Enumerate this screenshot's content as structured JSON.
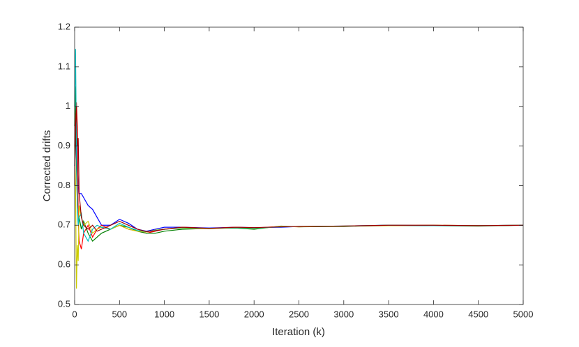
{
  "chart_data": {
    "type": "line",
    "xlabel": "Iteration (k)",
    "ylabel": "Corrected drifts",
    "x": [
      0,
      10,
      20,
      30,
      40,
      50,
      75,
      100,
      150,
      200,
      250,
      300,
      400,
      500,
      600,
      700,
      800,
      900,
      1000,
      1200,
      1500,
      1800,
      2000,
      2300,
      2500,
      3000,
      3500,
      4000,
      4500,
      5000
    ],
    "series": [
      {
        "color": "#0000ff",
        "values": [
          0.85,
          0.9,
          1.0,
          0.85,
          0.8,
          0.78,
          0.78,
          0.77,
          0.75,
          0.74,
          0.72,
          0.7,
          0.7,
          0.715,
          0.705,
          0.69,
          0.685,
          0.69,
          0.695,
          0.695,
          0.693,
          0.695,
          0.694,
          0.695,
          0.697,
          0.698,
          0.7,
          0.699,
          0.699,
          0.7
        ]
      },
      {
        "color": "#ff0000",
        "values": [
          0.9,
          0.97,
          1.01,
          0.95,
          0.72,
          0.66,
          0.64,
          0.68,
          0.7,
          0.67,
          0.69,
          0.7,
          0.69,
          0.7,
          0.69,
          0.685,
          0.68,
          0.685,
          0.69,
          0.695,
          0.692,
          0.695,
          0.693,
          0.697,
          0.696,
          0.698,
          0.699,
          0.7,
          0.699,
          0.7
        ]
      },
      {
        "color": "#008000",
        "values": [
          0.95,
          1.05,
          0.85,
          0.75,
          0.7,
          0.72,
          0.69,
          0.71,
          0.68,
          0.66,
          0.67,
          0.68,
          0.69,
          0.7,
          0.695,
          0.685,
          0.68,
          0.68,
          0.685,
          0.69,
          0.692,
          0.693,
          0.69,
          0.698,
          0.696,
          0.697,
          0.7,
          0.699,
          0.698,
          0.7
        ]
      },
      {
        "color": "#cccc00",
        "values": [
          0.9,
          0.8,
          0.54,
          0.65,
          0.61,
          0.75,
          0.72,
          0.7,
          0.71,
          0.68,
          0.69,
          0.695,
          0.69,
          0.7,
          0.69,
          0.685,
          0.683,
          0.688,
          0.69,
          0.693,
          0.691,
          0.694,
          0.692,
          0.697,
          0.696,
          0.698,
          0.699,
          0.7,
          0.699,
          0.7
        ]
      },
      {
        "color": "#00bfbf",
        "values": [
          1.0,
          1.145,
          0.9,
          0.75,
          0.7,
          0.72,
          0.73,
          0.68,
          0.66,
          0.69,
          0.7,
          0.695,
          0.69,
          0.705,
          0.695,
          0.687,
          0.684,
          0.687,
          0.69,
          0.694,
          0.692,
          0.694,
          0.693,
          0.696,
          0.697,
          0.698,
          0.7,
          0.699,
          0.699,
          0.7
        ]
      },
      {
        "color": "#a00000",
        "values": [
          0.8,
          0.95,
          1.0,
          0.9,
          0.92,
          0.78,
          0.72,
          0.7,
          0.69,
          0.7,
          0.685,
          0.69,
          0.7,
          0.71,
          0.7,
          0.69,
          0.684,
          0.686,
          0.69,
          0.695,
          0.692,
          0.695,
          0.694,
          0.696,
          0.697,
          0.698,
          0.7,
          0.7,
          0.699,
          0.7
        ]
      }
    ],
    "xlim": [
      0,
      5000
    ],
    "xticks": [
      0,
      500,
      1000,
      1500,
      2000,
      2500,
      3000,
      3500,
      4000,
      4500,
      5000
    ],
    "ylim": [
      0.5,
      1.2
    ],
    "yticks": [
      0.5,
      0.6,
      0.7,
      0.8,
      0.9,
      1,
      1.1,
      1.2
    ]
  }
}
